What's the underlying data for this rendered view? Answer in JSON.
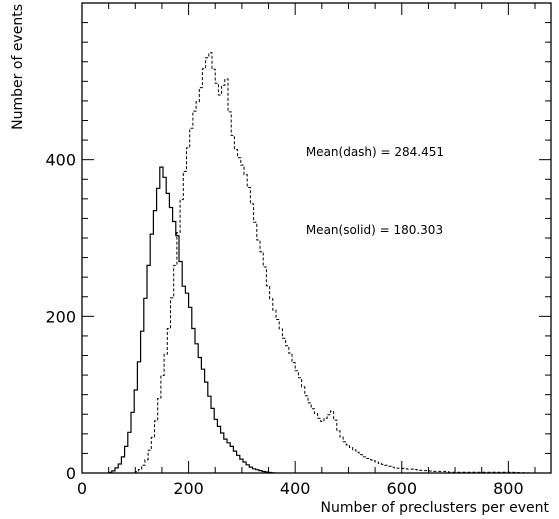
{
  "chart_data": {
    "type": "histogram",
    "xlabel": "Number of preclusters per event",
    "ylabel": "Number of events",
    "xlim": [
      0,
      880
    ],
    "ylim": [
      0,
      600
    ],
    "x_ticks": [
      0,
      200,
      400,
      600,
      800
    ],
    "y_ticks": [
      0,
      200,
      400
    ],
    "grid": false,
    "bin_width": 6,
    "annotations": [
      {
        "text": "Mean(dash) = 284.451",
        "x": 420,
        "y": 405
      },
      {
        "text": "Mean(solid) = 180.303",
        "x": 420,
        "y": 305
      }
    ],
    "series": [
      {
        "style": "solid",
        "points": [
          [
            50,
            0
          ],
          [
            60,
            3
          ],
          [
            70,
            10
          ],
          [
            80,
            25
          ],
          [
            90,
            55
          ],
          [
            100,
            100
          ],
          [
            110,
            160
          ],
          [
            120,
            230
          ],
          [
            130,
            300
          ],
          [
            140,
            350
          ],
          [
            150,
            395
          ],
          [
            160,
            360
          ],
          [
            170,
            330
          ],
          [
            180,
            300
          ],
          [
            190,
            240
          ],
          [
            200,
            225
          ],
          [
            210,
            180
          ],
          [
            220,
            150
          ],
          [
            230,
            125
          ],
          [
            240,
            95
          ],
          [
            250,
            70
          ],
          [
            260,
            55
          ],
          [
            270,
            42
          ],
          [
            280,
            35
          ],
          [
            290,
            25
          ],
          [
            300,
            17
          ],
          [
            310,
            11
          ],
          [
            320,
            6
          ],
          [
            330,
            4
          ],
          [
            340,
            2
          ],
          [
            350,
            1
          ],
          [
            360,
            0
          ]
        ]
      },
      {
        "style": "dash",
        "points": [
          [
            100,
            0
          ],
          [
            110,
            5
          ],
          [
            120,
            15
          ],
          [
            130,
            35
          ],
          [
            140,
            70
          ],
          [
            150,
            120
          ],
          [
            160,
            165
          ],
          [
            170,
            230
          ],
          [
            180,
            300
          ],
          [
            190,
            370
          ],
          [
            200,
            420
          ],
          [
            210,
            460
          ],
          [
            220,
            480
          ],
          [
            230,
            520
          ],
          [
            240,
            540
          ],
          [
            250,
            505
          ],
          [
            260,
            480
          ],
          [
            270,
            510
          ],
          [
            280,
            440
          ],
          [
            290,
            410
          ],
          [
            300,
            395
          ],
          [
            310,
            375
          ],
          [
            320,
            340
          ],
          [
            330,
            300
          ],
          [
            340,
            275
          ],
          [
            350,
            235
          ],
          [
            360,
            210
          ],
          [
            370,
            190
          ],
          [
            380,
            170
          ],
          [
            390,
            155
          ],
          [
            400,
            135
          ],
          [
            410,
            120
          ],
          [
            420,
            100
          ],
          [
            430,
            85
          ],
          [
            440,
            75
          ],
          [
            450,
            65
          ],
          [
            460,
            72
          ],
          [
            470,
            80
          ],
          [
            480,
            55
          ],
          [
            490,
            42
          ],
          [
            500,
            35
          ],
          [
            510,
            30
          ],
          [
            520,
            25
          ],
          [
            530,
            20
          ],
          [
            540,
            17
          ],
          [
            550,
            15
          ],
          [
            560,
            12
          ],
          [
            570,
            10
          ],
          [
            580,
            8
          ],
          [
            590,
            6
          ],
          [
            600,
            6
          ],
          [
            610,
            5
          ],
          [
            620,
            5
          ],
          [
            630,
            4
          ],
          [
            640,
            3
          ],
          [
            650,
            3
          ],
          [
            660,
            2
          ],
          [
            670,
            2
          ],
          [
            680,
            2
          ],
          [
            690,
            1
          ],
          [
            700,
            1
          ],
          [
            720,
            1
          ],
          [
            750,
            1
          ],
          [
            800,
            1
          ],
          [
            840,
            0
          ]
        ]
      }
    ]
  }
}
